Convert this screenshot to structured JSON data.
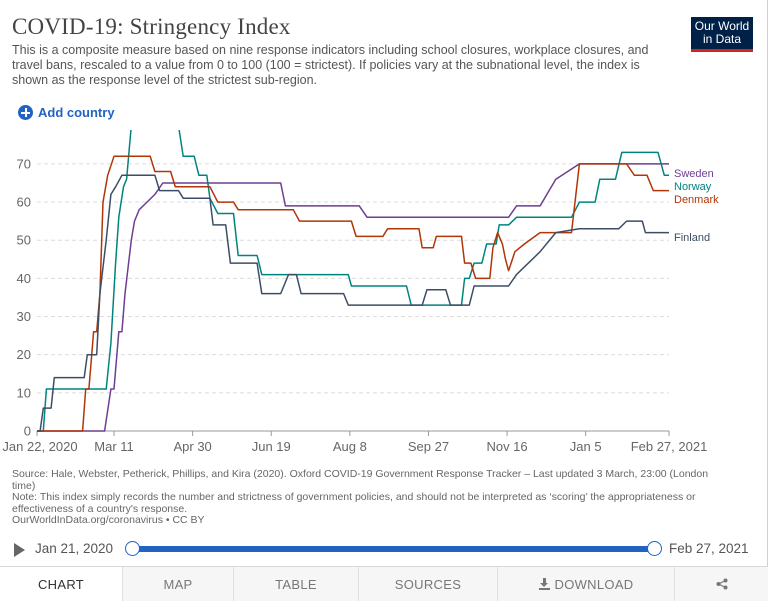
{
  "header": {
    "title": "COVID-19: Stringency Index",
    "subtitle": "This is a composite measure based on nine response indicators including school closures, workplace closures, and travel bans, rescaled to a value from 0 to 100 (100 = strictest). If policies vary at the subnational level, the index is shown as the response level of the strictest sub-region.",
    "logo_line1": "Our World",
    "logo_line2": "in Data"
  },
  "controls": {
    "add_country": "Add country"
  },
  "chart_data": {
    "type": "line",
    "title": "COVID-19: Stringency Index",
    "x_ticks": [
      "Jan 22, 2020",
      "Mar 11",
      "Apr 30",
      "Jun 19",
      "Aug 8",
      "Sep 27",
      "Nov 16",
      "Jan 5",
      "Feb 27, 2021"
    ],
    "x_tick_days": [
      0,
      49,
      99,
      149,
      199,
      249,
      299,
      349,
      402
    ],
    "y_ticks": [
      0,
      10,
      20,
      30,
      40,
      50,
      60,
      70
    ],
    "ylim": [
      0,
      76
    ],
    "xlim": [
      0,
      402
    ],
    "grid": "horizontal dashed",
    "series": [
      {
        "name": "Sweden",
        "color": "#6d3e91",
        "points": [
          [
            0,
            0
          ],
          [
            43,
            0
          ],
          [
            47,
            11
          ],
          [
            49,
            11
          ],
          [
            52,
            26
          ],
          [
            54,
            26
          ],
          [
            56,
            36
          ],
          [
            60,
            50
          ],
          [
            62,
            55
          ],
          [
            65,
            58
          ],
          [
            70,
            60
          ],
          [
            75,
            62
          ],
          [
            80,
            65
          ],
          [
            110,
            65
          ],
          [
            130,
            65
          ],
          [
            155,
            65
          ],
          [
            158,
            59
          ],
          [
            205,
            59
          ],
          [
            210,
            56
          ],
          [
            300,
            56
          ],
          [
            305,
            59
          ],
          [
            320,
            59
          ],
          [
            330,
            66
          ],
          [
            345,
            70
          ],
          [
            360,
            70
          ],
          [
            395,
            70
          ],
          [
            402,
            70
          ]
        ]
      },
      {
        "name": "Norway",
        "color": "#00847e",
        "points": [
          [
            0,
            0
          ],
          [
            4,
            0
          ],
          [
            6,
            11
          ],
          [
            44,
            11
          ],
          [
            47,
            23
          ],
          [
            50,
            44
          ],
          [
            52,
            56
          ],
          [
            55,
            64
          ],
          [
            57,
            66
          ],
          [
            60,
            80
          ],
          [
            90,
            80
          ],
          [
            93,
            72
          ],
          [
            100,
            72
          ],
          [
            103,
            67
          ],
          [
            108,
            67
          ],
          [
            110,
            61
          ],
          [
            115,
            57
          ],
          [
            125,
            57
          ],
          [
            128,
            46
          ],
          [
            140,
            46
          ],
          [
            143,
            41
          ],
          [
            198,
            41
          ],
          [
            200,
            38
          ],
          [
            235,
            38
          ],
          [
            238,
            33
          ],
          [
            270,
            33
          ],
          [
            272,
            40
          ],
          [
            275,
            40
          ],
          [
            278,
            44
          ],
          [
            283,
            44
          ],
          [
            286,
            49
          ],
          [
            292,
            49
          ],
          [
            294,
            54
          ],
          [
            300,
            54
          ],
          [
            305,
            56
          ],
          [
            340,
            56
          ],
          [
            345,
            60
          ],
          [
            355,
            60
          ],
          [
            358,
            66
          ],
          [
            368,
            66
          ],
          [
            372,
            73
          ],
          [
            395,
            73
          ],
          [
            399,
            67
          ],
          [
            402,
            67
          ]
        ]
      },
      {
        "name": "Denmark",
        "color": "#b13507",
        "points": [
          [
            0,
            0
          ],
          [
            29,
            0
          ],
          [
            31,
            11
          ],
          [
            33,
            11
          ],
          [
            36,
            26
          ],
          [
            38,
            26
          ],
          [
            40,
            36
          ],
          [
            42,
            60
          ],
          [
            45,
            67
          ],
          [
            49,
            72
          ],
          [
            72,
            72
          ],
          [
            75,
            68
          ],
          [
            85,
            68
          ],
          [
            88,
            64
          ],
          [
            110,
            64
          ],
          [
            115,
            60
          ],
          [
            125,
            60
          ],
          [
            128,
            58
          ],
          [
            163,
            58
          ],
          [
            167,
            55
          ],
          [
            200,
            55
          ],
          [
            203,
            51
          ],
          [
            220,
            51
          ],
          [
            223,
            53
          ],
          [
            243,
            53
          ],
          [
            245,
            48
          ],
          [
            252,
            48
          ],
          [
            254,
            51
          ],
          [
            270,
            51
          ],
          [
            272,
            44
          ],
          [
            276,
            44
          ],
          [
            279,
            40
          ],
          [
            288,
            40
          ],
          [
            290,
            48
          ],
          [
            293,
            52
          ],
          [
            296,
            49
          ],
          [
            298,
            45
          ],
          [
            300,
            42
          ],
          [
            304,
            47
          ],
          [
            310,
            49
          ],
          [
            320,
            52
          ],
          [
            325,
            52
          ],
          [
            340,
            52
          ],
          [
            345,
            70
          ],
          [
            350,
            70
          ],
          [
            375,
            70
          ],
          [
            380,
            67
          ],
          [
            388,
            67
          ],
          [
            392,
            63
          ],
          [
            402,
            63
          ]
        ]
      },
      {
        "name": "Finland",
        "color": "#3c4e66",
        "points": [
          [
            0,
            0
          ],
          [
            2,
            0
          ],
          [
            4,
            6
          ],
          [
            9,
            6
          ],
          [
            11,
            14
          ],
          [
            30,
            14
          ],
          [
            32,
            20
          ],
          [
            38,
            20
          ],
          [
            40,
            36
          ],
          [
            44,
            50
          ],
          [
            47,
            62
          ],
          [
            50,
            64
          ],
          [
            54,
            67
          ],
          [
            75,
            67
          ],
          [
            78,
            63
          ],
          [
            90,
            63
          ],
          [
            93,
            61
          ],
          [
            110,
            61
          ],
          [
            112,
            54
          ],
          [
            120,
            54
          ],
          [
            123,
            44
          ],
          [
            140,
            44
          ],
          [
            143,
            36
          ],
          [
            155,
            36
          ],
          [
            160,
            41
          ],
          [
            165,
            41
          ],
          [
            168,
            36
          ],
          [
            195,
            36
          ],
          [
            198,
            33
          ],
          [
            245,
            33
          ],
          [
            248,
            37
          ],
          [
            260,
            37
          ],
          [
            263,
            33
          ],
          [
            275,
            33
          ],
          [
            278,
            38
          ],
          [
            300,
            38
          ],
          [
            305,
            41
          ],
          [
            320,
            47
          ],
          [
            330,
            52
          ],
          [
            345,
            53
          ],
          [
            355,
            53
          ],
          [
            370,
            53
          ],
          [
            375,
            55
          ],
          [
            385,
            55
          ],
          [
            387,
            52
          ],
          [
            402,
            52
          ]
        ]
      }
    ]
  },
  "footer": {
    "source": "Source: Hale, Webster, Petherick, Phillips, and Kira (2020). Oxford COVID-19 Government Response Tracker – Last updated 3 March, 23:00 (London time)",
    "note": "Note: This index simply records the number and strictness of government policies, and should not be interpreted as ‘scoring’ the appropriateness or effectiveness of a country's response.",
    "credit": "OurWorldInData.org/coronavirus • CC BY"
  },
  "timeline": {
    "start": "Jan 21, 2020",
    "end": "Feb 27, 2021",
    "start_fraction": 0,
    "end_fraction": 1
  },
  "tabs": [
    {
      "label": "CHART",
      "active": true
    },
    {
      "label": "MAP",
      "active": false
    },
    {
      "label": "TABLE",
      "active": false
    },
    {
      "label": "SOURCES",
      "active": false
    },
    {
      "label": "DOWNLOAD",
      "active": false
    }
  ],
  "icons": {
    "add": "plus-circle-icon",
    "play": "play-icon",
    "download": "download-icon",
    "share": "share-icon"
  }
}
